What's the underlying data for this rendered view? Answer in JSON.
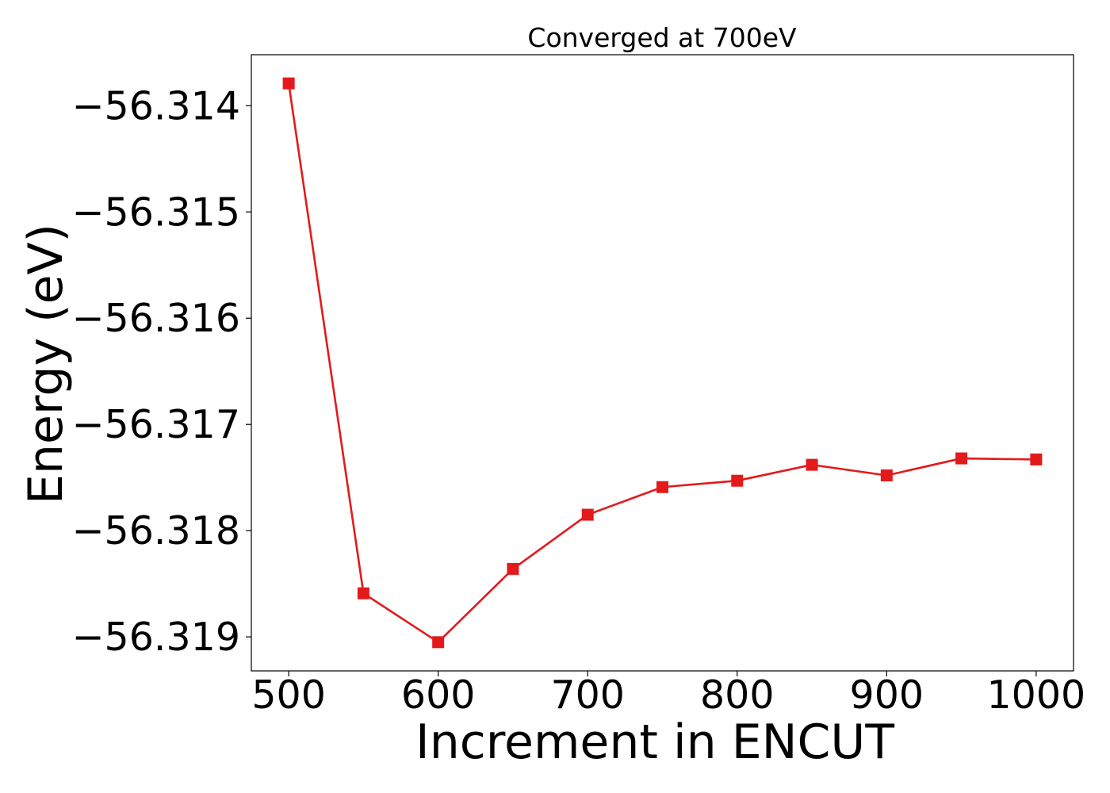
{
  "chart_data": {
    "type": "line",
    "title": "Converged at 700eV",
    "xlabel": "Increment in ENCUT",
    "ylabel": "Energy (eV)",
    "xlim": [
      475,
      1025
    ],
    "ylim": [
      -56.31932,
      -56.31352
    ],
    "x_ticks": [
      500,
      600,
      700,
      800,
      900,
      1000
    ],
    "y_ticks": [
      -56.314,
      -56.315,
      -56.316,
      -56.317,
      -56.318,
      -56.319
    ],
    "y_tick_labels": [
      "−56.314",
      "−56.315",
      "−56.316",
      "−56.317",
      "−56.318",
      "−56.319"
    ],
    "grid": false,
    "series": [
      {
        "color": "#e31a1c",
        "marker": "square",
        "x": [
          500,
          550,
          600,
          650,
          700,
          750,
          800,
          850,
          900,
          950,
          1000
        ],
        "y": [
          -56.31379,
          -56.31859,
          -56.31905,
          -56.31836,
          -56.31785,
          -56.31759,
          -56.31753,
          -56.31738,
          -56.31748,
          -56.31732,
          -56.31733
        ]
      }
    ]
  }
}
